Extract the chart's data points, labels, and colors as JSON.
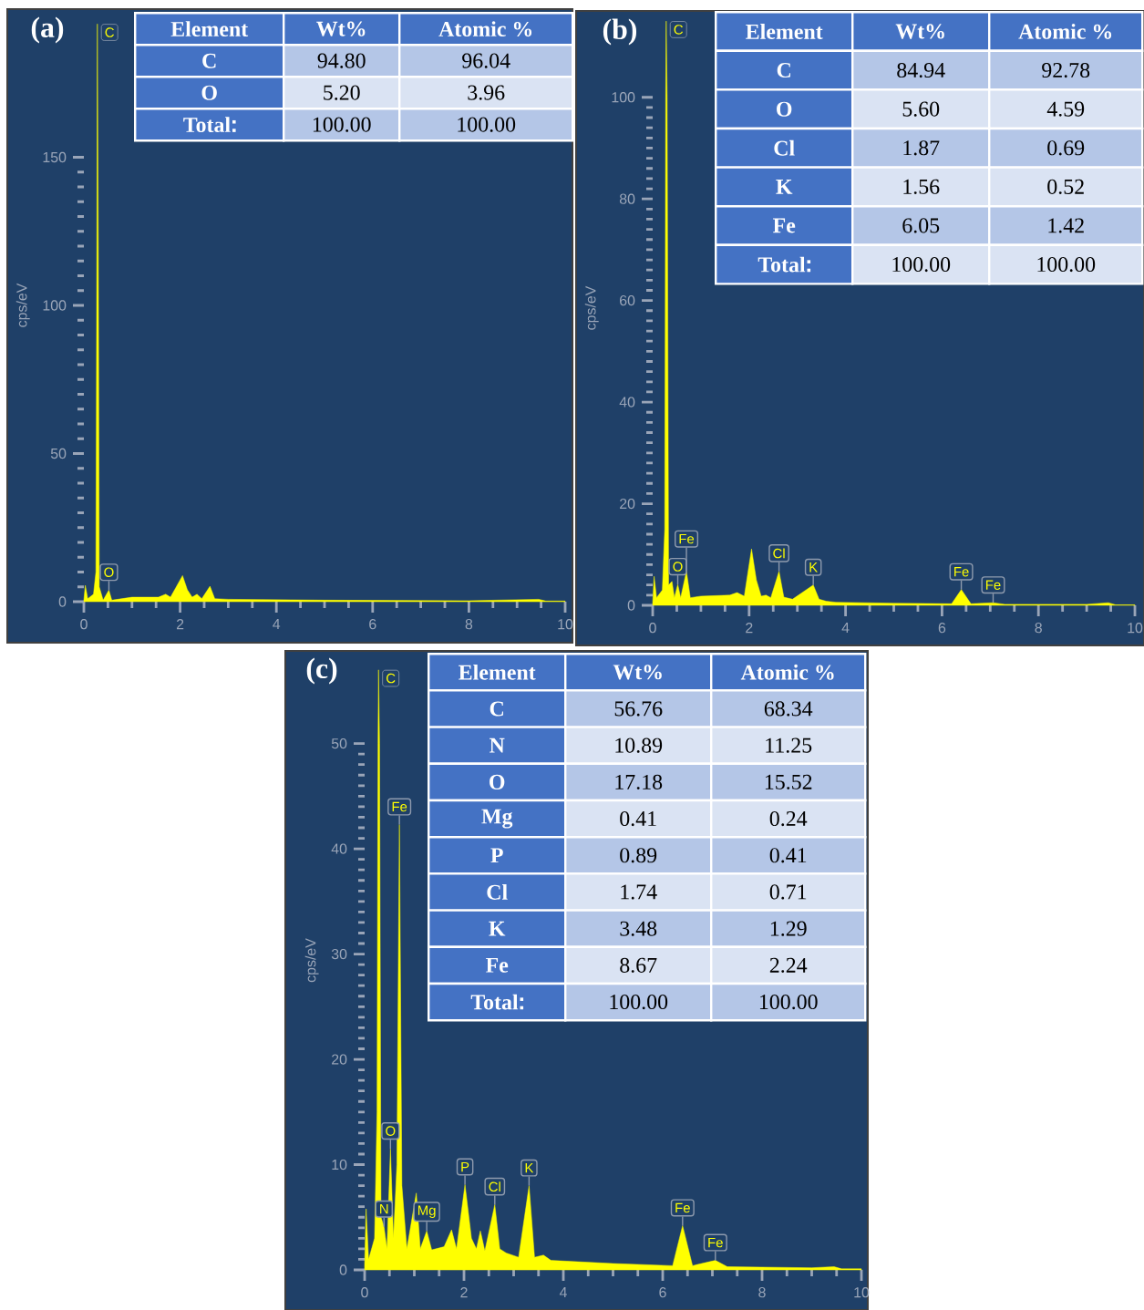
{
  "chart_data": [
    {
      "type": "area",
      "title": "(a)",
      "ylabel": "cps/eV",
      "color": "#ffff00",
      "xlim": [
        0,
        10
      ],
      "ylim": [
        0,
        200
      ],
      "xticks": [
        0,
        2,
        4,
        6,
        8,
        10
      ],
      "yticks": [
        0,
        50,
        100,
        150
      ],
      "x": [
        0,
        0.03,
        0.08,
        0.2,
        0.25,
        0.27,
        0.28,
        0.3,
        0.32,
        0.4,
        0.52,
        0.58,
        1,
        1.55,
        1.7,
        1.8,
        2.05,
        2.15,
        2.25,
        2.35,
        2.45,
        2.62,
        2.72,
        3,
        5,
        8,
        9.45,
        9.6,
        10
      ],
      "values": [
        0.5,
        5.5,
        1,
        2.5,
        10,
        120,
        195,
        120,
        5,
        0.5,
        3.9,
        0.5,
        1.5,
        1.5,
        2.5,
        1.5,
        8.8,
        4,
        1.5,
        2.5,
        1,
        5.2,
        1,
        0.8,
        0.5,
        0.3,
        0.8,
        0.2,
        0.2
      ],
      "annotations": [
        {
          "text": "C",
          "x": 0.28,
          "y": 195
        },
        {
          "text": "O",
          "x": 0.52,
          "y": 3.9
        }
      ]
    },
    {
      "type": "other",
      "xlabel": "Element",
      "categories": [
        "C",
        "O",
        "Total"
      ],
      "series": [
        {
          "name": "Wt%",
          "values": [
            94.8,
            5.2,
            100.0
          ],
          "value_labels": [
            "94.80",
            "5.20",
            "100.00"
          ],
          "colors": [
            "#b4c6e7",
            "#dae3f3",
            "#b4c6e7"
          ]
        },
        {
          "name": "Atomic %",
          "values": [
            96.04,
            3.96,
            100.0
          ],
          "value_labels": [
            "96.04",
            "3.96",
            "100.00"
          ],
          "colors": [
            "#b4c6e7",
            "#dae3f3",
            "#b4c6e7"
          ]
        }
      ]
    },
    {
      "type": "area",
      "title": "(b)",
      "ylabel": "cps/eV",
      "color": "#ffff00",
      "xlim": [
        0,
        10
      ],
      "ylim": [
        0,
        117
      ],
      "xticks": [
        0,
        2,
        4,
        6,
        8,
        10
      ],
      "yticks": [
        0,
        20,
        40,
        60,
        80,
        100
      ],
      "x": [
        0,
        0.03,
        0.08,
        0.2,
        0.25,
        0.27,
        0.28,
        0.3,
        0.33,
        0.4,
        0.45,
        0.52,
        0.58,
        0.7,
        0.78,
        1,
        1.6,
        1.75,
        1.9,
        2.05,
        2.15,
        2.25,
        2.35,
        2.45,
        2.62,
        2.72,
        2.9,
        3.33,
        3.45,
        3.6,
        3.8,
        5,
        6.2,
        6.4,
        6.6,
        7.06,
        7.3,
        9,
        9.45,
        9.6,
        10
      ],
      "values": [
        0.5,
        5.7,
        1.5,
        3,
        15,
        100,
        115,
        100,
        4,
        4.7,
        1.5,
        4.1,
        1.5,
        6.7,
        1.5,
        1.8,
        2,
        2.5,
        1.8,
        11.1,
        5,
        1.8,
        2,
        1.5,
        6.7,
        1.6,
        1.2,
        4,
        1.2,
        0.8,
        0.6,
        0.4,
        0.3,
        3.1,
        0.3,
        0.5,
        0.2,
        0.2,
        0.5,
        0.1,
        0.1
      ],
      "annotations": [
        {
          "text": "C",
          "x": 0.28,
          "y": 115
        },
        {
          "text": "O",
          "x": 0.52,
          "y": 4.1
        },
        {
          "text": "Fe",
          "x": 0.7,
          "y": 6.7
        },
        {
          "text": "Cl",
          "x": 2.62,
          "y": 6.7
        },
        {
          "text": "K",
          "x": 3.33,
          "y": 4
        },
        {
          "text": "Fe",
          "x": 6.4,
          "y": 3.1
        },
        {
          "text": "Fe",
          "x": 7.06,
          "y": 0.5
        }
      ]
    },
    {
      "type": "other",
      "xlabel": "Element",
      "categories": [
        "C",
        "O",
        "Cl",
        "K",
        "Fe",
        "Total"
      ],
      "series": [
        {
          "name": "Wt%",
          "values": [
            84.94,
            5.6,
            1.87,
            1.56,
            6.05,
            100.0
          ],
          "value_labels": [
            "84.94",
            "5.60",
            "1.87",
            "1.56",
            "6.05",
            "100.00"
          ],
          "colors": [
            "#b4c6e7",
            "#dae3f3",
            "#b4c6e7",
            "#dae3f3",
            "#b4c6e7",
            "#dae3f3"
          ]
        },
        {
          "name": "Atomic %",
          "values": [
            92.78,
            4.59,
            0.69,
            0.52,
            1.42,
            100.0
          ],
          "value_labels": [
            "92.78",
            "4.59",
            "0.69",
            "0.52",
            "1.42",
            "100.00"
          ],
          "colors": [
            "#b4c6e7",
            "#dae3f3",
            "#b4c6e7",
            "#dae3f3",
            "#b4c6e7",
            "#dae3f3"
          ]
        }
      ]
    },
    {
      "type": "area",
      "title": "(c)",
      "ylabel": "cps/eV",
      "color": "#ffff00",
      "xlim": [
        0,
        10
      ],
      "ylim": [
        0,
        58.8
      ],
      "xticks": [
        0,
        2,
        4,
        6,
        8,
        10
      ],
      "yticks": [
        0,
        10,
        20,
        30,
        40,
        50
      ],
      "x": [
        0,
        0.03,
        0.08,
        0.2,
        0.25,
        0.27,
        0.28,
        0.3,
        0.33,
        0.39,
        0.45,
        0.52,
        0.58,
        0.65,
        0.7,
        0.75,
        0.85,
        1.04,
        1.12,
        1.25,
        1.35,
        1.6,
        1.75,
        1.85,
        2.02,
        2.15,
        2.25,
        2.33,
        2.42,
        2.62,
        2.72,
        2.85,
        3.1,
        3.31,
        3.42,
        3.6,
        3.75,
        5,
        6.2,
        6.4,
        6.6,
        7.06,
        7.3,
        9,
        9.45,
        9.6,
        10
      ],
      "values": [
        0.5,
        5.8,
        1,
        3,
        15,
        50,
        57,
        50,
        5,
        4.1,
        2,
        11.5,
        3,
        10,
        42.3,
        8,
        2,
        7.3,
        2,
        3.7,
        1.9,
        2.2,
        3.8,
        2,
        8.1,
        3,
        2,
        3.7,
        1.8,
        6.2,
        2,
        1.6,
        1.2,
        8,
        1.2,
        1.4,
        0.9,
        0.6,
        0.4,
        4.2,
        0.4,
        0.9,
        0.3,
        0.2,
        0.3,
        0.1,
        0.1
      ],
      "annotations": [
        {
          "text": "C",
          "x": 0.28,
          "y": 57
        },
        {
          "text": "Fe",
          "x": 0.7,
          "y": 42.3
        },
        {
          "text": "O",
          "x": 0.52,
          "y": 11.5
        },
        {
          "text": "N",
          "x": 0.39,
          "y": 4.1
        },
        {
          "text": "Mg",
          "x": 1.25,
          "y": 3.7
        },
        {
          "text": "P",
          "x": 2.02,
          "y": 8.1
        },
        {
          "text": "Cl",
          "x": 2.62,
          "y": 6.2
        },
        {
          "text": "K",
          "x": 3.31,
          "y": 8
        },
        {
          "text": "Fe",
          "x": 6.4,
          "y": 4.2
        },
        {
          "text": "Fe",
          "x": 7.06,
          "y": 0.9
        }
      ]
    },
    {
      "type": "other",
      "xlabel": "Element",
      "categories": [
        "C",
        "N",
        "O",
        "Mg",
        "P",
        "Cl",
        "K",
        "Fe",
        "Total"
      ],
      "series": [
        {
          "name": "Wt%",
          "values": [
            56.76,
            10.89,
            17.18,
            0.41,
            0.89,
            1.74,
            3.48,
            8.67,
            100.0
          ],
          "value_labels": [
            "56.76",
            "10.89",
            "17.18",
            "0.41",
            "0.89",
            "1.74",
            "3.48",
            "8.67",
            "100.00"
          ],
          "colors": [
            "#b4c6e7",
            "#dae3f3",
            "#b4c6e7",
            "#dae3f3",
            "#b4c6e7",
            "#dae3f3",
            "#b4c6e7",
            "#dae3f3",
            "#b4c6e7"
          ]
        },
        {
          "name": "Atomic %",
          "values": [
            68.34,
            11.25,
            15.52,
            0.24,
            0.41,
            0.71,
            1.29,
            2.24,
            100.0
          ],
          "value_labels": [
            "68.34",
            "11.25",
            "15.52",
            "0.24",
            "0.41",
            "0.71",
            "1.29",
            "2.24",
            "100.00"
          ],
          "colors": [
            "#b4c6e7",
            "#dae3f3",
            "#b4c6e7",
            "#dae3f3",
            "#b4c6e7",
            "#dae3f3",
            "#b4c6e7",
            "#dae3f3",
            "#b4c6e7"
          ]
        }
      ]
    }
  ]
}
